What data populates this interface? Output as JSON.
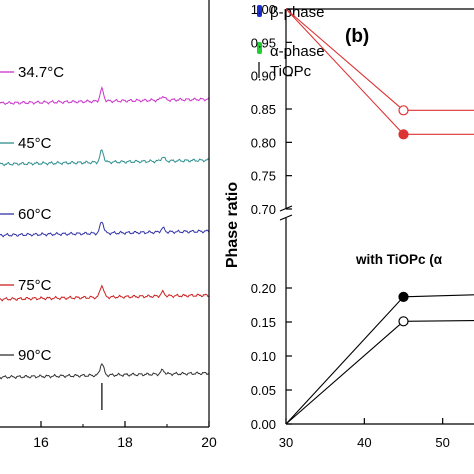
{
  "chart_data": [
    {
      "type": "line",
      "panel": "a (partial)",
      "xlabel": "",
      "ylabel": "",
      "xlim": [
        14,
        20
      ],
      "x_ticks": [
        "16",
        "18",
        "20"
      ],
      "legend": [
        {
          "label": "β-phase",
          "color": "#1f2fcc",
          "marker": "bar"
        },
        {
          "label": "α-phase",
          "color": "#22cc33",
          "marker": "bar"
        },
        {
          "label": "TiOPc",
          "color": "#000000",
          "marker": "line"
        }
      ],
      "series": [
        {
          "name": "34.7°C",
          "color": "#cc33cc",
          "peaks": [
            17.45,
            18.9
          ]
        },
        {
          "name": "45°C",
          "color": "#2f8f8f",
          "peaks": [
            17.45,
            18.9
          ]
        },
        {
          "name": "60°C",
          "color": "#3333aa",
          "peaks": [
            17.45,
            18.9
          ]
        },
        {
          "name": "75°C",
          "color": "#cc2222",
          "peaks": [
            17.45,
            18.9
          ]
        },
        {
          "name": "90°C",
          "color": "#333333",
          "peaks": [
            17.45,
            18.9
          ]
        }
      ],
      "marker_x": 17.45,
      "grid": false
    },
    {
      "type": "line",
      "panel_label": "(b)",
      "ylabel": "Phase ratio",
      "xlabel": "",
      "xlim": [
        30,
        54
      ],
      "x_ticks": [
        "30",
        "40",
        "50"
      ],
      "y_axis_break": true,
      "ylim_upper": [
        0.7,
        1.0
      ],
      "y_ticks_upper": [
        "1.00",
        "0.95",
        "0.90",
        "0.85",
        "0.80",
        "0.75",
        "0.70"
      ],
      "ylim_lower": [
        0.0,
        0.2
      ],
      "y_ticks_lower": [
        "0.20",
        "0.15",
        "0.10",
        "0.05",
        "0.00"
      ],
      "annotation": "with TiOPc (α",
      "series": [
        {
          "color": "#dd3333",
          "marker": "filled-circle",
          "x": [
            30,
            45,
            54
          ],
          "y": [
            1.0,
            0.812,
            0.812
          ]
        },
        {
          "color": "#dd3333",
          "marker": "open-circle",
          "x": [
            30,
            45,
            54
          ],
          "y": [
            1.0,
            0.848,
            0.848
          ]
        },
        {
          "color": "#000000",
          "marker": "filled-circle",
          "x": [
            30,
            45,
            54
          ],
          "y": [
            0.0,
            0.187,
            0.19
          ]
        },
        {
          "color": "#000000",
          "marker": "open-circle",
          "x": [
            30,
            45,
            54
          ],
          "y": [
            0.0,
            0.151,
            0.152
          ]
        }
      ],
      "grid": false
    }
  ]
}
